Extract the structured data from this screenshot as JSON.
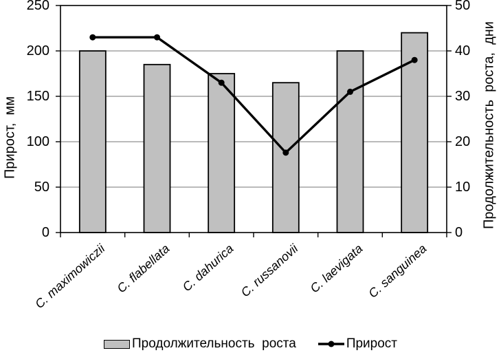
{
  "chart_data": {
    "type": "bar+line combo",
    "categories": [
      "C. maximowiczii",
      "C. flabellata",
      "C. dahurica",
      "C. russanovii",
      "C. laevigata",
      "C. sanguinea"
    ],
    "series": [
      {
        "name": "Продолжительность роста",
        "type": "bar",
        "axis": "right",
        "unit": "дни",
        "values": [
          40,
          37,
          35,
          33,
          40,
          44
        ]
      },
      {
        "name": "Прирост",
        "type": "line",
        "axis": "left",
        "unit": "мм",
        "values": [
          215,
          215,
          165,
          88,
          155,
          190
        ]
      }
    ],
    "left_axis": {
      "title": "Прирост,  мм",
      "min": 0,
      "max": 250,
      "step": 50,
      "tick_labels": [
        "250",
        "200",
        "150",
        "100",
        "50",
        "0"
      ]
    },
    "right_axis": {
      "title": "Продолжительность  роста,  дни",
      "min": 0,
      "max": 50,
      "step": 10,
      "tick_labels": [
        "50",
        "40",
        "30",
        "20",
        "10",
        "0"
      ]
    },
    "grid": true,
    "legend_position": "bottom",
    "colors": {
      "bar_fill": "#c0c0c0",
      "bar_border": "#000000",
      "line": "#000000",
      "marker": "#000000",
      "gridline": "#909090",
      "axis_border": "#000000",
      "background": "#ffffff"
    }
  },
  "legend": {
    "bar_label": "Продолжительность  роста",
    "line_label": "Прирост"
  }
}
